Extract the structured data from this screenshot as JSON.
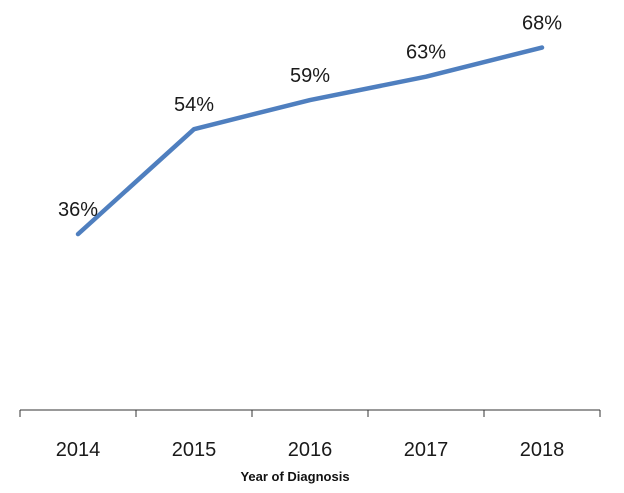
{
  "chart_data": {
    "type": "line",
    "categories": [
      "2014",
      "2015",
      "2016",
      "2017",
      "2018"
    ],
    "series": [
      {
        "values": [
          36,
          54,
          59,
          63,
          68
        ],
        "data_labels": [
          "36%",
          "54%",
          "59%",
          "63%",
          "68%"
        ],
        "color": "#4f7fbf"
      }
    ],
    "title": "",
    "xlabel": "Year of Diagnosis",
    "ylabel": "",
    "ylim": [
      0,
      75
    ],
    "grid": false,
    "legend": "none"
  }
}
